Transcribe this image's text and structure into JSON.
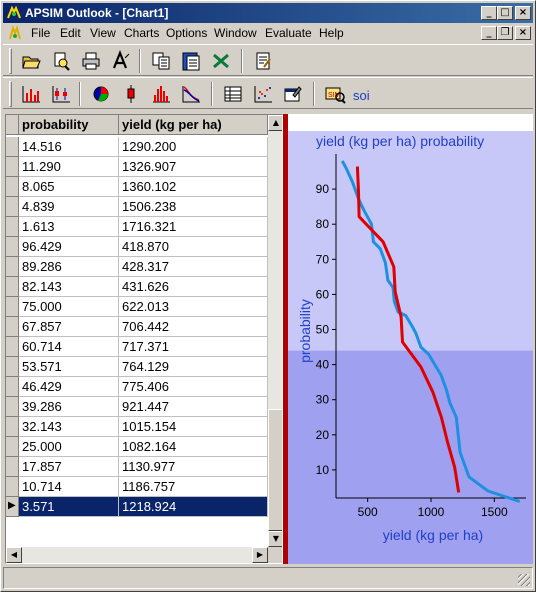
{
  "window": {
    "title": "APSIM Outlook - [Chart1]",
    "minimize_icon": "minimize-icon",
    "maximize_icon": "maximize-icon",
    "close_icon": "close-icon"
  },
  "menu": {
    "items": [
      "File",
      "Edit",
      "View",
      "Charts",
      "Options",
      "Window",
      "Evaluate",
      "Help"
    ]
  },
  "toolbar1": {
    "icons": [
      "open-folder-icon",
      "print-preview-icon",
      "print-icon",
      "font-icon",
      "copy-icon",
      "paste-icon",
      "excel-icon",
      "notes-icon"
    ]
  },
  "toolbar2": {
    "icons": [
      "bar-chart-icon",
      "box-chart-icon",
      "pie-chart-icon",
      "candle-chart-icon",
      "histogram-icon",
      "probability-chart-icon",
      "table-icon",
      "scatter-icon",
      "properties-icon",
      "soi-icon"
    ],
    "soi_label": "soi"
  },
  "grid": {
    "columns": [
      "probability",
      "yield (kg per ha)"
    ],
    "rows": [
      [
        "14.516",
        "1290.200"
      ],
      [
        "11.290",
        "1326.907"
      ],
      [
        "8.065",
        "1360.102"
      ],
      [
        "4.839",
        "1506.238"
      ],
      [
        "1.613",
        "1716.321"
      ],
      [
        "96.429",
        "418.870"
      ],
      [
        "89.286",
        "428.317"
      ],
      [
        "82.143",
        "431.626"
      ],
      [
        "75.000",
        "622.013"
      ],
      [
        "67.857",
        "706.442"
      ],
      [
        "60.714",
        "717.371"
      ],
      [
        "53.571",
        "764.129"
      ],
      [
        "46.429",
        "775.406"
      ],
      [
        "39.286",
        "921.447"
      ],
      [
        "32.143",
        "1015.154"
      ],
      [
        "25.000",
        "1082.164"
      ],
      [
        "17.857",
        "1130.977"
      ],
      [
        "10.714",
        "1186.757"
      ],
      [
        "3.571",
        "1218.924"
      ]
    ],
    "selected_row": 18
  },
  "chart_data": {
    "type": "line",
    "title": "yield (kg per ha) probability",
    "xlabel": "yield (kg per ha)",
    "ylabel": "probability",
    "xlim": [
      250,
      1750
    ],
    "ylim": [
      2,
      100
    ],
    "xticks": [
      500,
      1000,
      1500
    ],
    "yticks": [
      10,
      20,
      30,
      40,
      50,
      60,
      70,
      80,
      90
    ],
    "colors": {
      "band_top": "#c8c8f8",
      "band_bottom": "#a0a0f0",
      "blue_series": "#1e90e0",
      "red_series": "#e00000",
      "axis_label": "#2040c8"
    },
    "band_split_probability": 44,
    "series": [
      {
        "color": "#1e90e0",
        "x": [
          300,
          330,
          380,
          430,
          470,
          530,
          545,
          600,
          640,
          660,
          700,
          710,
          740,
          800,
          850,
          880,
          920,
          980,
          1030,
          1080,
          1120,
          1150,
          1200,
          1215,
          1230,
          1260,
          1300,
          1450,
          1700
        ],
        "y": [
          98,
          96,
          92,
          87,
          84,
          80,
          75,
          73,
          69,
          64,
          62,
          58,
          55,
          54,
          51,
          49,
          45,
          43,
          40,
          37,
          33,
          29,
          25,
          20,
          15,
          12,
          8,
          4,
          1
        ]
      },
      {
        "color": "#e00000",
        "x": [
          419,
          428,
          432,
          622,
          706,
          717,
          764,
          775,
          921,
          1015,
          1082,
          1131,
          1187,
          1219
        ],
        "y": [
          96.429,
          89.286,
          82.143,
          75.0,
          67.857,
          60.714,
          53.571,
          46.429,
          39.286,
          32.143,
          25.0,
          17.857,
          10.714,
          3.571
        ]
      }
    ]
  }
}
